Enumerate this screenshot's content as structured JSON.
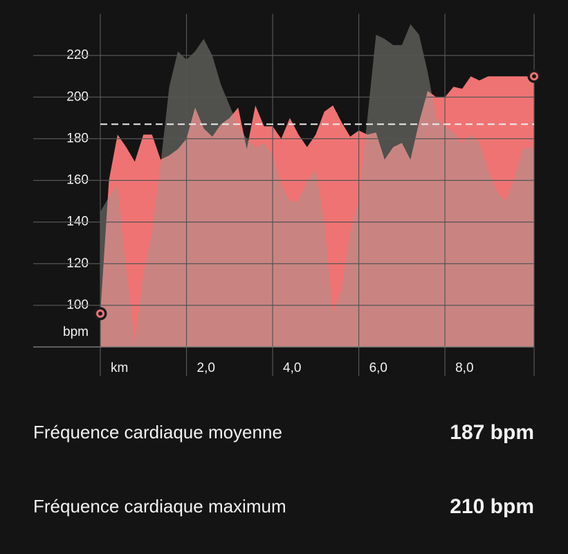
{
  "chart_data": {
    "type": "area",
    "x": [
      0,
      0.2,
      0.4,
      0.6,
      0.8,
      1.0,
      1.2,
      1.4,
      1.6,
      1.8,
      2.0,
      2.2,
      2.4,
      2.6,
      2.8,
      3.0,
      3.2,
      3.4,
      3.6,
      3.8,
      4.0,
      4.2,
      4.4,
      4.6,
      4.8,
      5.0,
      5.2,
      5.4,
      5.6,
      5.8,
      6.0,
      6.2,
      6.4,
      6.6,
      6.8,
      7.0,
      7.2,
      7.4,
      7.6,
      7.8,
      8.0,
      8.2,
      8.4,
      8.6,
      8.8,
      9.0,
      9.2,
      9.4,
      9.6,
      9.8,
      10.0,
      10.07
    ],
    "series": [
      {
        "color": "#f07373",
        "opacity": 1,
        "endpoint_markers": true,
        "values": [
          96,
          160,
          182,
          176,
          169,
          182,
          182,
          170,
          172,
          175,
          180,
          195,
          185,
          181,
          187,
          190,
          195,
          175,
          196,
          186,
          186,
          180,
          190,
          182,
          176,
          182,
          193,
          196,
          188,
          181,
          184,
          182,
          183,
          170,
          176,
          178,
          170,
          188,
          203,
          200,
          200,
          205,
          204,
          210,
          208,
          210,
          210,
          210,
          210,
          210,
          210,
          210
        ]
      },
      {
        "color": "#9a9a92",
        "opacity": 0.45,
        "endpoint_markers": false,
        "values": [
          145,
          152,
          158,
          118,
          82,
          115,
          135,
          168,
          205,
          222,
          218,
          222,
          228,
          220,
          206,
          196,
          186,
          180,
          176,
          178,
          172,
          158,
          150,
          150,
          160,
          165,
          140,
          96,
          108,
          135,
          150,
          190,
          230,
          228,
          225,
          225,
          235,
          230,
          212,
          190,
          186,
          183,
          178,
          182,
          178,
          165,
          155,
          150,
          160,
          175,
          176,
          175
        ]
      }
    ],
    "xlim": [
      0,
      10.07
    ],
    "xticks": [
      {
        "value": 0,
        "label": "km"
      },
      {
        "value": 2,
        "label": "2,0"
      },
      {
        "value": 4,
        "label": "4,0"
      },
      {
        "value": 6,
        "label": "6,0"
      },
      {
        "value": 8,
        "label": "8,0"
      }
    ],
    "ylim": [
      80,
      240
    ],
    "yticks": [
      100,
      120,
      140,
      160,
      180,
      200,
      220
    ],
    "y_unit": "bpm",
    "grid": true
  },
  "summary": [
    {
      "label": "Fréquence cardiaque moyenne",
      "value": 187,
      "value_label": "187 bpm"
    },
    {
      "label": "Fréquence cardiaque maximum",
      "value": 210,
      "value_label": "210 bpm"
    }
  ]
}
